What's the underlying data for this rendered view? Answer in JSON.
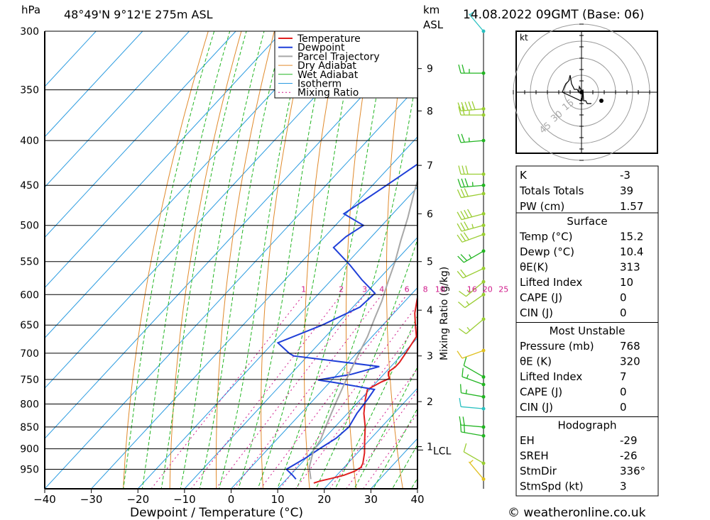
{
  "header": {
    "hpa_label": "hPa",
    "location": "48°49'N  9°12'E  275m  ASL",
    "km_label": "km",
    "asl_label": "ASL",
    "datetime": "14.08.2022  09GMT  (Base: 06)"
  },
  "colors": {
    "temperature": "#e02020",
    "dewpoint": "#1f3fd8",
    "parcel": "#a8a8a8",
    "dry_adiabat": "#e08a2c",
    "wet_adiabat": "#22b522",
    "isotherm": "#2a9be0",
    "mixing_ratio": "#d0188a",
    "wind_barb": "#9acd32"
  },
  "chart_data": {
    "type": "line",
    "xlabel": "Dewpoint / Temperature (°C)",
    "ylabel_right": "Mixing Ratio (g/kg)",
    "x_ticks": [
      -40,
      -30,
      -20,
      -10,
      0,
      10,
      20,
      30,
      40
    ],
    "x_tick_labels": [
      "−40",
      "−30",
      "−20",
      "−10",
      "0",
      "10",
      "20",
      "30",
      "40"
    ],
    "pressure_levels": [
      300,
      350,
      400,
      450,
      500,
      550,
      600,
      650,
      700,
      750,
      800,
      850,
      900,
      950
    ],
    "km_ticks": [
      {
        "km": 9,
        "p": 331
      },
      {
        "km": 8,
        "p": 370
      },
      {
        "km": 7,
        "p": 427
      },
      {
        "km": 6,
        "p": 485
      },
      {
        "km": 5,
        "p": 550
      },
      {
        "km": 4,
        "p": 625
      },
      {
        "km": 3,
        "p": 705
      },
      {
        "km": 2,
        "p": 795
      },
      {
        "km": 1,
        "p": 895
      }
    ],
    "km_labels": [
      "9",
      "8",
      "7",
      "6",
      "5",
      "4",
      "3",
      "2",
      "1"
    ],
    "lcl_label": "LCL",
    "lcl_pressure": 903,
    "mixing_ratio_labels": [
      "1",
      "2",
      "3",
      "4",
      "6",
      "8",
      "10",
      "16",
      "20",
      "25"
    ],
    "mixing_ratio_values": [
      1,
      2,
      3,
      4,
      6,
      8,
      10,
      16,
      20,
      25
    ],
    "legend": [
      "Temperature",
      "Dewpoint",
      "Parcel Trajectory",
      "Dry Adiabat",
      "Wet Adiabat",
      "Isotherm",
      "Mixing Ratio"
    ],
    "legend_placement": "top-right",
    "series": [
      {
        "name": "Temperature",
        "color": "#e02020",
        "points": [
          [
            16.6,
            985
          ],
          [
            17.5,
            980
          ],
          [
            19.5,
            973
          ],
          [
            21.5,
            965
          ],
          [
            23.0,
            955
          ],
          [
            23.6,
            945
          ],
          [
            23.2,
            935
          ],
          [
            21.5,
            910
          ],
          [
            19.0,
            880
          ],
          [
            16.5,
            850
          ],
          [
            13.5,
            820
          ],
          [
            11.0,
            790
          ],
          [
            9.5,
            770
          ],
          [
            10.5,
            760
          ],
          [
            11.0,
            755
          ],
          [
            12.0,
            748
          ],
          [
            11.2,
            742
          ],
          [
            10.5,
            735
          ],
          [
            11.0,
            726
          ],
          [
            11.0,
            717
          ],
          [
            10.5,
            700
          ],
          [
            9.5,
            670
          ],
          [
            7.0,
            650
          ],
          [
            4.5,
            630
          ],
          [
            2.5,
            610
          ],
          [
            0.5,
            590
          ],
          [
            -1.5,
            570
          ],
          [
            -3.0,
            550
          ],
          [
            -3.5,
            525
          ],
          [
            -4.3,
            500
          ],
          [
            -5.5,
            480
          ],
          [
            -8.5,
            460
          ],
          [
            -11.5,
            440
          ],
          [
            -14.5,
            420
          ],
          [
            -17.5,
            400
          ],
          [
            -20.5,
            385
          ],
          [
            -22.5,
            370
          ],
          [
            -24.5,
            355
          ],
          [
            -26.5,
            340
          ],
          [
            -28.5,
            325
          ],
          [
            -31.0,
            310
          ],
          [
            -33.0,
            300
          ]
        ]
      },
      {
        "name": "Dewpoint",
        "color": "#1f3fd8",
        "points": [
          [
            12.0,
            975
          ],
          [
            10.5,
            965
          ],
          [
            8.0,
            950
          ],
          [
            9.0,
            935
          ],
          [
            10.0,
            920
          ],
          [
            11.0,
            900
          ],
          [
            12.5,
            875
          ],
          [
            13.0,
            850
          ],
          [
            12.0,
            820
          ],
          [
            11.5,
            790
          ],
          [
            11.0,
            770
          ],
          [
            1.0,
            756
          ],
          [
            -3.0,
            751
          ],
          [
            3.0,
            740
          ],
          [
            7.5,
            725
          ],
          [
            -13.0,
            705
          ],
          [
            -14.5,
            700
          ],
          [
            -19.0,
            681
          ],
          [
            -13.0,
            650
          ],
          [
            -8.5,
            620
          ],
          [
            -8.0,
            598
          ],
          [
            -13.5,
            577
          ],
          [
            -19.0,
            555
          ],
          [
            -26.0,
            530
          ],
          [
            -25.5,
            515
          ],
          [
            -24.0,
            500
          ],
          [
            -30.5,
            485
          ],
          [
            -29.0,
            470
          ],
          [
            -27.5,
            455
          ],
          [
            -26.0,
            440
          ],
          [
            -24.0,
            420
          ],
          [
            -23.0,
            400
          ],
          [
            -22.0,
            390
          ],
          [
            -20.5,
            375
          ],
          [
            -21.5,
            360
          ],
          [
            -23.5,
            340
          ],
          [
            -25.5,
            320
          ],
          [
            -27.5,
            305
          ],
          [
            -28.0,
            300
          ]
        ]
      },
      {
        "name": "Parcel Trajectory",
        "color": "#a8a8a8",
        "points": [
          [
            15.2,
            975
          ],
          [
            12.5,
            945
          ],
          [
            10.0,
            903
          ],
          [
            9.5,
            880
          ],
          [
            8.0,
            850
          ],
          [
            6.5,
            820
          ],
          [
            5.0,
            790
          ],
          [
            3.5,
            760
          ],
          [
            2.0,
            730
          ],
          [
            0.5,
            700
          ],
          [
            -1.0,
            670
          ],
          [
            -3.0,
            640
          ],
          [
            -5.0,
            610
          ],
          [
            -7.5,
            580
          ],
          [
            -10.0,
            550
          ],
          [
            -13.0,
            520
          ],
          [
            -16.0,
            490
          ],
          [
            -19.5,
            460
          ],
          [
            -23.0,
            430
          ],
          [
            -27.0,
            400
          ],
          [
            -31.0,
            370
          ],
          [
            -35.5,
            340
          ],
          [
            -40.0,
            310
          ],
          [
            -41.5,
            300
          ]
        ]
      }
    ]
  },
  "hodograph": {
    "unit_label": "kt",
    "ring_labels": [
      "15",
      "30",
      "45"
    ],
    "ring_values": [
      15,
      30,
      45
    ],
    "points": [
      [
        0,
        0
      ],
      [
        -1,
        1
      ],
      [
        -3,
        2
      ],
      [
        -4,
        0
      ],
      [
        -6,
        1
      ],
      [
        -10,
        1
      ],
      [
        -14,
        3
      ],
      [
        -16,
        6
      ],
      [
        -18,
        4
      ],
      [
        -22,
        3
      ],
      [
        -24,
        2
      ],
      [
        -27,
        0
      ],
      [
        -1,
        -3
      ],
      [
        0,
        -2
      ],
      [
        1,
        -3
      ],
      [
        2,
        1
      ],
      [
        3,
        -3
      ],
      [
        5,
        -3
      ],
      [
        6,
        -3
      ],
      [
        8,
        -4
      ],
      [
        10,
        -4
      ],
      [
        12,
        -4
      ],
      [
        14,
        -4
      ]
    ]
  },
  "indices": {
    "k_label": "K",
    "k_value": "-3",
    "tt_label": "Totals Totals",
    "tt_value": "39",
    "pw_label": "PW (cm)",
    "pw_value": "1.57"
  },
  "surface": {
    "header": "Surface",
    "rows": [
      {
        "label": "Temp (°C)",
        "value": "15.2"
      },
      {
        "label": "Dewp (°C)",
        "value": "10.4"
      },
      {
        "label": "θE(K)",
        "value": "313"
      },
      {
        "label": "Lifted Index",
        "value": "10"
      },
      {
        "label": "CAPE (J)",
        "value": "0"
      },
      {
        "label": "CIN (J)",
        "value": "0"
      }
    ]
  },
  "most_unstable": {
    "header": "Most Unstable",
    "rows": [
      {
        "label": "Pressure (mb)",
        "value": "768"
      },
      {
        "label": "θE (K)",
        "value": "320"
      },
      {
        "label": "Lifted Index",
        "value": "7"
      },
      {
        "label": "CAPE (J)",
        "value": "0"
      },
      {
        "label": "CIN (J)",
        "value": "0"
      }
    ]
  },
  "hodograph_table": {
    "header": "Hodograph",
    "rows": [
      {
        "label": "EH",
        "value": "-29"
      },
      {
        "label": "SREH",
        "value": "-26"
      },
      {
        "label": "StmDir",
        "value": "336°"
      },
      {
        "label": "StmSpd (kt)",
        "value": "3"
      }
    ]
  },
  "footer": {
    "copyright": "© weatheronline.co.uk"
  },
  "wind_barbs": [
    {
      "p": 300,
      "dir": 320,
      "spd": 5,
      "color": "#29c0c0"
    },
    {
      "p": 335,
      "dir": 270,
      "spd": 25,
      "color": "#22b522"
    },
    {
      "p": 368,
      "dir": 265,
      "spd": 50,
      "color": "#9acd32"
    },
    {
      "p": 374,
      "dir": 270,
      "spd": 25,
      "color": "#9acd32"
    },
    {
      "p": 400,
      "dir": 265,
      "spd": 25,
      "color": "#22b522"
    },
    {
      "p": 437,
      "dir": 270,
      "spd": 30,
      "color": "#9acd32"
    },
    {
      "p": 450,
      "dir": 265,
      "spd": 35,
      "color": "#22b522"
    },
    {
      "p": 460,
      "dir": 260,
      "spd": 30,
      "color": "#9acd32"
    },
    {
      "p": 485,
      "dir": 255,
      "spd": 40,
      "color": "#9acd32"
    },
    {
      "p": 500,
      "dir": 255,
      "spd": 35,
      "color": "#9acd32"
    },
    {
      "p": 512,
      "dir": 250,
      "spd": 30,
      "color": "#9acd32"
    },
    {
      "p": 535,
      "dir": 240,
      "spd": 25,
      "color": "#22b522"
    },
    {
      "p": 560,
      "dir": 245,
      "spd": 20,
      "color": "#9acd32"
    },
    {
      "p": 580,
      "dir": 230,
      "spd": 15,
      "color": "#9acd32"
    },
    {
      "p": 600,
      "dir": 235,
      "spd": 15,
      "color": "#9acd32"
    },
    {
      "p": 640,
      "dir": 230,
      "spd": 15,
      "color": "#9acd32"
    },
    {
      "p": 695,
      "dir": 250,
      "spd": 10,
      "color": "#e0c020"
    },
    {
      "p": 745,
      "dir": 300,
      "spd": 10,
      "color": "#22b522"
    },
    {
      "p": 760,
      "dir": 290,
      "spd": 15,
      "color": "#22b522"
    },
    {
      "p": 785,
      "dir": 280,
      "spd": 15,
      "color": "#22b522"
    },
    {
      "p": 810,
      "dir": 275,
      "spd": 10,
      "color": "#29c0c0"
    },
    {
      "p": 850,
      "dir": 275,
      "spd": 20,
      "color": "#22b522"
    },
    {
      "p": 870,
      "dir": 280,
      "spd": 20,
      "color": "#22b522"
    },
    {
      "p": 935,
      "dir": 300,
      "spd": 10,
      "color": "#9acd32"
    },
    {
      "p": 975,
      "dir": 320,
      "spd": 5,
      "color": "#e0c020"
    }
  ]
}
